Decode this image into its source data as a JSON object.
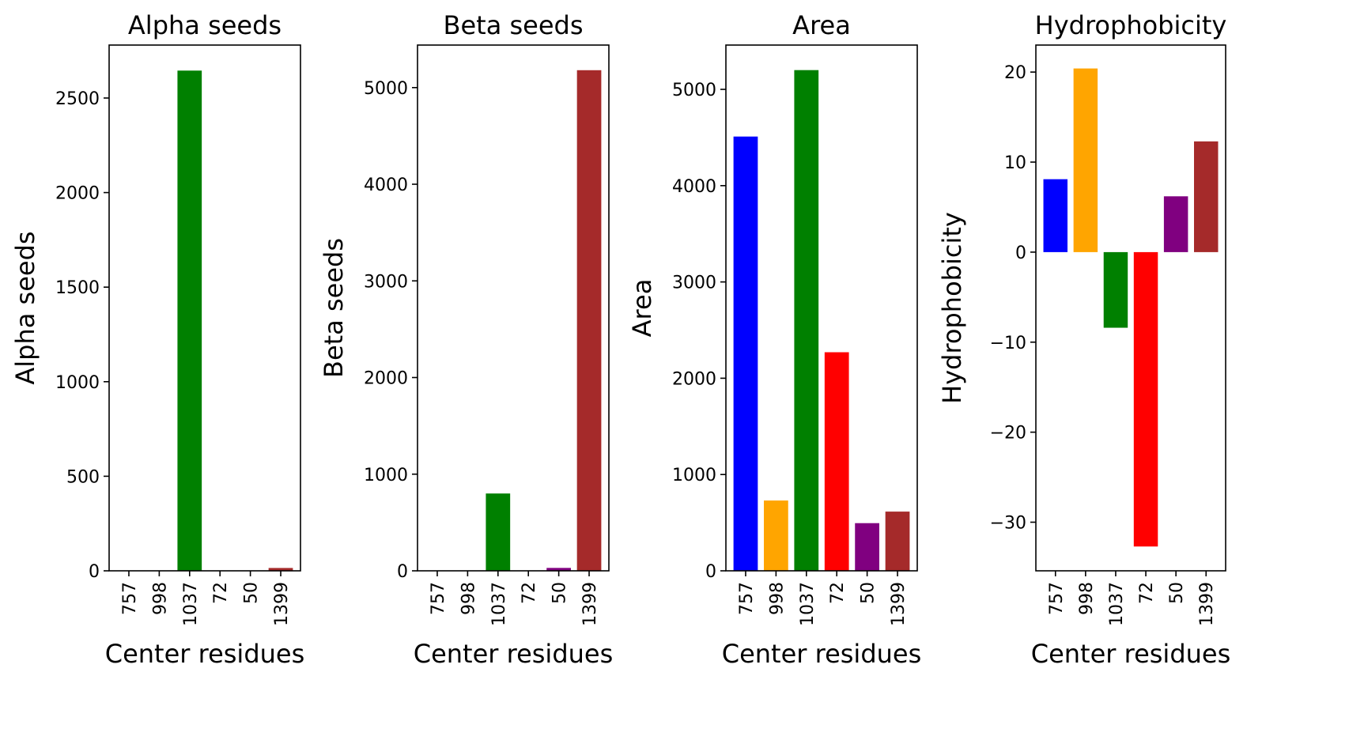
{
  "chart_data": [
    {
      "type": "bar",
      "title": "Alpha seeds",
      "xlabel": "Center residues",
      "ylabel": "Alpha seeds",
      "categories": [
        "757",
        "998",
        "1037",
        "72",
        "50",
        "1399"
      ],
      "values": [
        0,
        0,
        2645,
        0,
        0,
        15
      ],
      "colors": [
        "#0000ff",
        "#ffa500",
        "#008000",
        "#ff0000",
        "#800080",
        "#a52a2a"
      ],
      "yticks": [
        0,
        500,
        1000,
        1500,
        2000,
        2500
      ],
      "ytick_labels": [
        "0",
        "500",
        "1000",
        "1500",
        "2000",
        "2500"
      ],
      "ylim": [
        0,
        2780
      ]
    },
    {
      "type": "bar",
      "title": "Beta seeds",
      "xlabel": "Center residues",
      "ylabel": "Beta seeds",
      "categories": [
        "757",
        "998",
        "1037",
        "72",
        "50",
        "1399"
      ],
      "values": [
        0,
        0,
        800,
        0,
        30,
        5180
      ],
      "colors": [
        "#0000ff",
        "#ffa500",
        "#008000",
        "#ff0000",
        "#800080",
        "#a52a2a"
      ],
      "yticks": [
        0,
        1000,
        2000,
        3000,
        4000,
        5000
      ],
      "ytick_labels": [
        "0",
        "1000",
        "2000",
        "3000",
        "4000",
        "5000"
      ],
      "ylim": [
        0,
        5440
      ]
    },
    {
      "type": "bar",
      "title": "Area",
      "xlabel": "Center residues",
      "ylabel": "Area",
      "categories": [
        "757",
        "998",
        "1037",
        "72",
        "50",
        "1399"
      ],
      "values": [
        4510,
        730,
        5200,
        2270,
        495,
        615
      ],
      "colors": [
        "#0000ff",
        "#ffa500",
        "#008000",
        "#ff0000",
        "#800080",
        "#a52a2a"
      ],
      "yticks": [
        0,
        1000,
        2000,
        3000,
        4000,
        5000
      ],
      "ytick_labels": [
        "0",
        "1000",
        "2000",
        "3000",
        "4000",
        "5000"
      ],
      "ylim": [
        0,
        5460
      ]
    },
    {
      "type": "bar",
      "title": "Hydrophobicity",
      "xlabel": "Center residues",
      "ylabel": "Hydrophobicity",
      "categories": [
        "757",
        "998",
        "1037",
        "72",
        "50",
        "1399"
      ],
      "values": [
        8.1,
        20.4,
        -8.4,
        -32.7,
        6.2,
        12.3
      ],
      "colors": [
        "#0000ff",
        "#ffa500",
        "#008000",
        "#ff0000",
        "#800080",
        "#a52a2a"
      ],
      "yticks": [
        -30,
        -20,
        -10,
        0,
        10,
        20
      ],
      "ytick_labels": [
        "−30",
        "−20",
        "−10",
        "0",
        "10",
        "20"
      ],
      "ylim": [
        -35.4,
        23.0
      ]
    }
  ]
}
